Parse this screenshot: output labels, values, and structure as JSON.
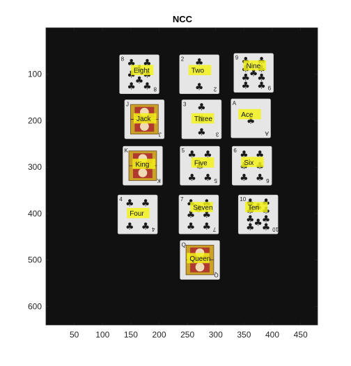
{
  "chart_data": {
    "type": "image",
    "title": "NCC",
    "xlim": [
      0,
      480
    ],
    "ylim": [
      640,
      0
    ],
    "xticks": [
      50,
      100,
      150,
      200,
      250,
      300,
      350,
      400,
      450
    ],
    "yticks": [
      100,
      200,
      300,
      400,
      500,
      600
    ],
    "background_color": "#111111",
    "card_color": "#e6e6e6",
    "label_color": "#f2f21a",
    "suit": "clubs",
    "cards": [
      {
        "label": "Eight",
        "rank": "8",
        "face": false,
        "cx": 165,
        "cy": 100,
        "box": {
          "x": 150,
          "y": 80,
          "w": 40,
          "h": 22
        }
      },
      {
        "label": "Two",
        "rank": "2",
        "face": false,
        "cx": 271,
        "cy": 100,
        "box": {
          "x": 252,
          "y": 80,
          "w": 40,
          "h": 22
        }
      },
      {
        "label": "Nine",
        "rank": "9",
        "face": false,
        "cx": 367,
        "cy": 97,
        "box": {
          "x": 349,
          "y": 70,
          "w": 40,
          "h": 22
        }
      },
      {
        "label": "Jack",
        "rank": "J",
        "face": true,
        "cx": 174,
        "cy": 197,
        "box": {
          "x": 155,
          "y": 184,
          "w": 40,
          "h": 22
        }
      },
      {
        "label": "Three",
        "rank": "3",
        "face": false,
        "cx": 275,
        "cy": 197,
        "box": {
          "x": 257,
          "y": 184,
          "w": 40,
          "h": 22
        }
      },
      {
        "label": "Ace",
        "rank": "A",
        "face": false,
        "cx": 362,
        "cy": 195,
        "box": {
          "x": 340,
          "y": 175,
          "w": 40,
          "h": 22
        }
      },
      {
        "label": "King",
        "rank": "K",
        "face": true,
        "cx": 171,
        "cy": 297,
        "box": {
          "x": 153,
          "y": 282,
          "w": 40,
          "h": 22
        }
      },
      {
        "label": "Five",
        "rank": "5",
        "face": false,
        "cx": 272,
        "cy": 297,
        "box": {
          "x": 257,
          "y": 279,
          "w": 40,
          "h": 22
        }
      },
      {
        "label": "Six",
        "rank": "6",
        "face": false,
        "cx": 364,
        "cy": 297,
        "box": {
          "x": 345,
          "y": 278,
          "w": 40,
          "h": 22
        }
      },
      {
        "label": "Four",
        "rank": "4",
        "face": false,
        "cx": 162,
        "cy": 402,
        "box": {
          "x": 143,
          "y": 388,
          "w": 40,
          "h": 22
        }
      },
      {
        "label": "Seven",
        "rank": "7",
        "face": false,
        "cx": 270,
        "cy": 402,
        "box": {
          "x": 255,
          "y": 375,
          "w": 40,
          "h": 22
        }
      },
      {
        "label": "Ten",
        "rank": "10",
        "face": false,
        "cx": 375,
        "cy": 402,
        "box": {
          "x": 352,
          "y": 375,
          "w": 40,
          "h": 22
        }
      },
      {
        "label": "Queen",
        "rank": "Q",
        "face": true,
        "cx": 272,
        "cy": 500,
        "box": {
          "x": 249,
          "y": 485,
          "w": 40,
          "h": 22
        }
      }
    ]
  }
}
